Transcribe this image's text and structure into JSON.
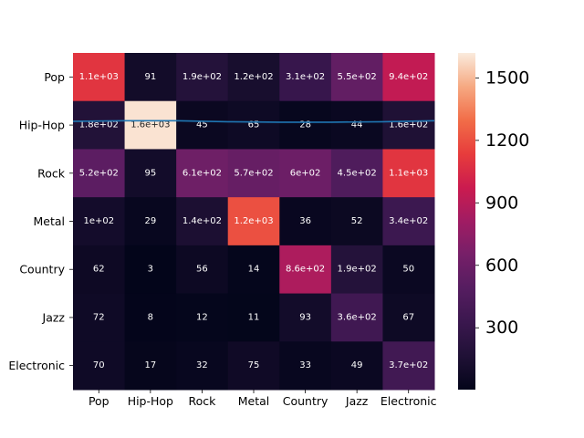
{
  "chart_data": {
    "type": "heatmap",
    "title": "",
    "xlabel": "",
    "ylabel": "",
    "x_categories": [
      "Pop",
      "Hip-Hop",
      "Rock",
      "Metal",
      "Country",
      "Jazz",
      "Electronic"
    ],
    "y_categories": [
      "Pop",
      "Hip-Hop",
      "Rock",
      "Metal",
      "Country",
      "Jazz",
      "Electronic"
    ],
    "values": [
      [
        1100,
        91,
        190,
        120,
        310,
        550,
        940
      ],
      [
        180,
        1600,
        45,
        65,
        28,
        44,
        160
      ],
      [
        520,
        95,
        610,
        570,
        600,
        450,
        1100
      ],
      [
        100,
        29,
        140,
        1200,
        36,
        52,
        340
      ],
      [
        62,
        3,
        56,
        14,
        860,
        190,
        50
      ],
      [
        72,
        8,
        12,
        11,
        93,
        360,
        67
      ],
      [
        70,
        17,
        32,
        75,
        33,
        49,
        370
      ]
    ],
    "cell_labels": [
      [
        "1.1e+03",
        "91",
        "1.9e+02",
        "1.2e+02",
        "3.1e+02",
        "5.5e+02",
        "9.4e+02"
      ],
      [
        "1.8e+02",
        "1.6e+03",
        "45",
        "65",
        "28",
        "44",
        "1.6e+02"
      ],
      [
        "5.2e+02",
        "95",
        "6.1e+02",
        "5.7e+02",
        "6e+02",
        "4.5e+02",
        "1.1e+03"
      ],
      [
        "1e+02",
        "29",
        "1.4e+02",
        "1.2e+03",
        "36",
        "52",
        "3.4e+02"
      ],
      [
        "62",
        "3",
        "56",
        "14",
        "8.6e+02",
        "1.9e+02",
        "50"
      ],
      [
        "72",
        "8",
        "12",
        "11",
        "93",
        "3.6e+02",
        "67"
      ],
      [
        "70",
        "17",
        "32",
        "75",
        "33",
        "49",
        "3.7e+02"
      ]
    ],
    "colorbar": {
      "colormap": "rocket",
      "range": [
        3,
        1620
      ],
      "ticks": [
        300,
        600,
        900,
        1200,
        1500
      ],
      "tick_labels": [
        "300",
        "600",
        "900",
        "1200",
        "1500"
      ]
    },
    "overlay_line": {
      "color": "#1f77b4",
      "y_row_units": [
        1.42,
        1.41,
        1.41,
        1.43,
        1.44,
        1.44,
        1.43,
        1.41
      ]
    }
  }
}
